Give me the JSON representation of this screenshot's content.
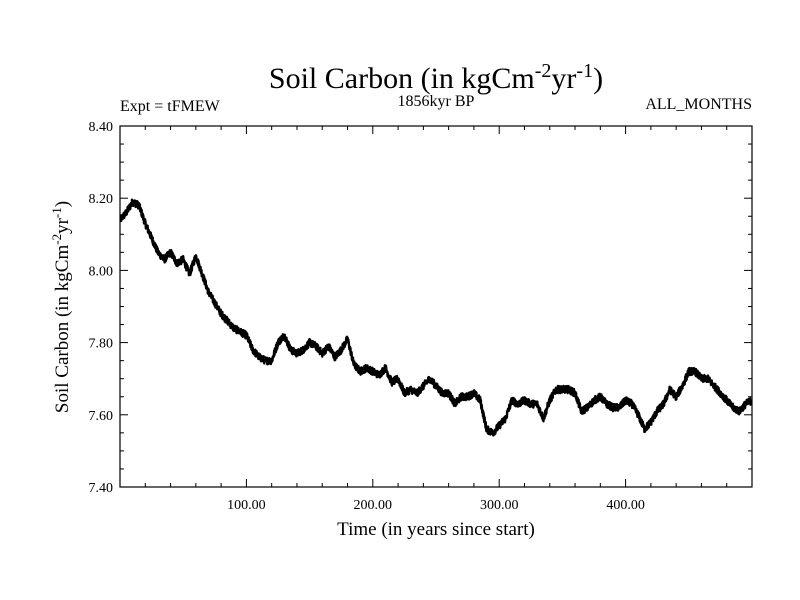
{
  "chart_data": {
    "type": "line",
    "title": "Soil Carbon (in kgCm",
    "title_sup1": "-2",
    "title_mid": "yr",
    "title_sup2": "-1",
    "title_end": ")",
    "subtitle_left": "Expt = tFMEW",
    "subtitle_center": "1856kyr BP",
    "subtitle_right": "ALL_MONTHS",
    "xlabel": "Time (in years since start)",
    "ylabel": "Soil Carbon (in kgCm",
    "ylabel_sup1": "-2",
    "ylabel_mid": "yr",
    "ylabel_sup2": "-1",
    "ylabel_end": ")",
    "xlim": [
      0,
      500
    ],
    "ylim": [
      7.4,
      8.4
    ],
    "x_ticks": [
      100,
      200,
      300,
      400
    ],
    "x_tick_labels": [
      "100.00",
      "200.00",
      "300.00",
      "400.00"
    ],
    "y_ticks": [
      7.4,
      7.6,
      7.8,
      8.0,
      8.2,
      8.4
    ],
    "y_tick_labels": [
      "7.40",
      "7.60",
      "7.80",
      "8.00",
      "8.20",
      "8.40"
    ],
    "series": [
      {
        "name": "Soil Carbon",
        "color": "#000000",
        "x": [
          0,
          5,
          10,
          15,
          20,
          25,
          30,
          35,
          40,
          45,
          50,
          55,
          60,
          65,
          70,
          75,
          80,
          85,
          90,
          95,
          100,
          105,
          110,
          115,
          120,
          125,
          130,
          135,
          140,
          145,
          150,
          155,
          160,
          165,
          170,
          175,
          180,
          185,
          190,
          195,
          200,
          205,
          210,
          215,
          220,
          225,
          230,
          235,
          240,
          245,
          250,
          255,
          260,
          265,
          270,
          275,
          280,
          285,
          290,
          295,
          300,
          305,
          310,
          315,
          320,
          325,
          330,
          335,
          340,
          345,
          350,
          355,
          360,
          365,
          370,
          375,
          380,
          385,
          390,
          395,
          400,
          405,
          410,
          415,
          420,
          425,
          430,
          435,
          440,
          445,
          450,
          455,
          460,
          465,
          470,
          475,
          480,
          485,
          490,
          495,
          500
        ],
        "y": [
          8.14,
          8.16,
          8.19,
          8.18,
          8.13,
          8.09,
          8.05,
          8.03,
          8.05,
          8.02,
          8.03,
          7.99,
          8.04,
          7.99,
          7.94,
          7.91,
          7.88,
          7.86,
          7.84,
          7.83,
          7.82,
          7.78,
          7.76,
          7.75,
          7.75,
          7.8,
          7.82,
          7.78,
          7.77,
          7.78,
          7.8,
          7.79,
          7.77,
          7.79,
          7.76,
          7.78,
          7.81,
          7.74,
          7.72,
          7.73,
          7.72,
          7.71,
          7.73,
          7.69,
          7.7,
          7.66,
          7.67,
          7.66,
          7.68,
          7.7,
          7.68,
          7.66,
          7.66,
          7.63,
          7.65,
          7.65,
          7.66,
          7.64,
          7.56,
          7.55,
          7.57,
          7.59,
          7.64,
          7.63,
          7.64,
          7.63,
          7.63,
          7.59,
          7.64,
          7.67,
          7.67,
          7.67,
          7.66,
          7.61,
          7.62,
          7.64,
          7.65,
          7.63,
          7.62,
          7.62,
          7.64,
          7.63,
          7.6,
          7.56,
          7.58,
          7.61,
          7.63,
          7.67,
          7.65,
          7.68,
          7.72,
          7.72,
          7.7,
          7.7,
          7.68,
          7.66,
          7.64,
          7.62,
          7.61,
          7.63,
          7.64
        ]
      }
    ]
  }
}
